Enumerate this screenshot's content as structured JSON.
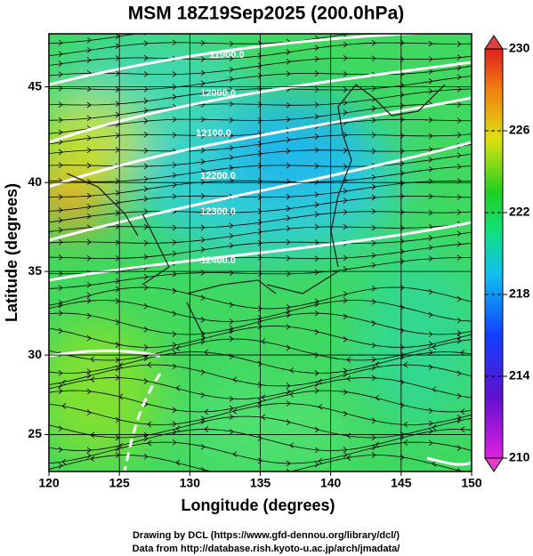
{
  "title": "MSM 18Z19Sep2025 (200.0hPa)",
  "map": {
    "x_label": "Longitude (degrees)",
    "y_label": "Latitude  (degrees)",
    "xlim": [
      120,
      150
    ],
    "xticks": [
      120,
      125,
      130,
      135,
      140,
      145,
      150
    ],
    "ylim": [
      22.6,
      47.6
    ],
    "yticks": [
      25,
      30,
      35,
      40,
      45
    ],
    "grid": true,
    "contour_labels": [
      "11900.0",
      "12000.0",
      "12100.0",
      "12200.0",
      "12300.0",
      "12400.0"
    ]
  },
  "colorbar": {
    "ylim": [
      210,
      230
    ],
    "ticks": [
      210,
      214,
      218,
      222,
      226,
      230
    ]
  },
  "footer": [
    "Drawing by DCL (https://www.gfd-dennou.org/library/dcl/)",
    "Data from http://database.rish.kyoto-u.ac.jp/arch/jmadata/"
  ]
}
